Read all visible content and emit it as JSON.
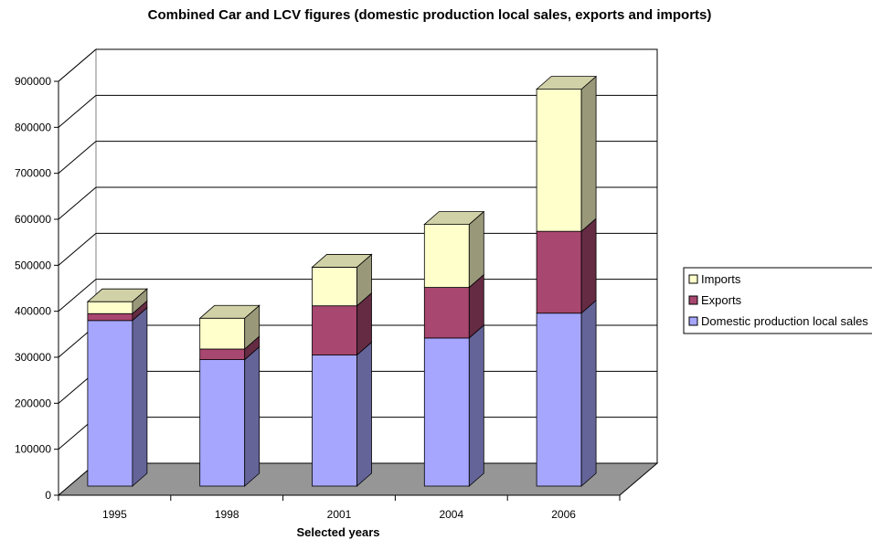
{
  "chart_data": {
    "type": "bar",
    "stacked": true,
    "three_d": true,
    "title": "Combined Car and LCV figures (domestic production local sales, exports and imports)",
    "xlabel": "Selected years",
    "ylabel": "",
    "categories": [
      "1995",
      "1998",
      "2001",
      "2004",
      "2006"
    ],
    "series": [
      {
        "name": "Domestic production local sales",
        "values": [
          360000,
          275000,
          285000,
          322000,
          376000
        ],
        "color": "#a6a6ff"
      },
      {
        "name": "Exports",
        "values": [
          15000,
          23000,
          107000,
          110000,
          178000
        ],
        "color": "#a8476f"
      },
      {
        "name": "Imports",
        "values": [
          26000,
          67000,
          84000,
          137000,
          309000
        ],
        "color": "#ffffcc"
      }
    ],
    "ylim": [
      0,
      900000
    ],
    "yticks": [
      "0",
      "100000",
      "200000",
      "300000",
      "400000",
      "500000",
      "600000",
      "700000",
      "800000",
      "900000"
    ],
    "grid": true,
    "legend": "right",
    "legend_order": [
      "Imports",
      "Exports",
      "Domestic production local sales"
    ]
  }
}
